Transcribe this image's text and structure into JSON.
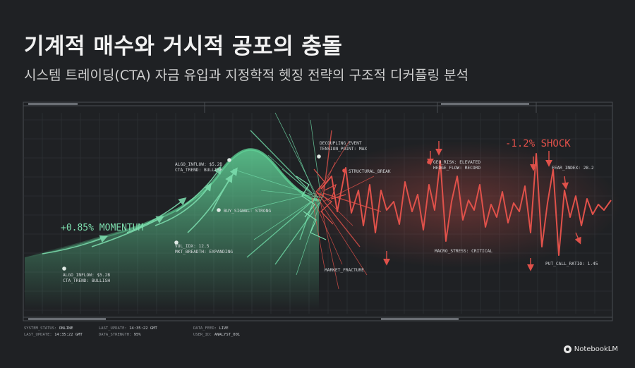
{
  "title": "기계적 매수와 거시적 공포의 충돌",
  "subtitle": "시스템 트레이딩(CTA) 자금 유입과 지정학적 헷징 전략의 구조적 디커플링 분석",
  "labels": {
    "momentum": "+0.85% MOMENTUM",
    "shock": "-1.2% SHOCK",
    "algo_low_1": "ALGO_INFLOW: $5.2B",
    "algo_low_2": "CTA_TREND: BULLISH",
    "algo_high_1": "ALGO_INFLOW: $5.2B",
    "algo_high_2": "CTA_TREND: BULLISH",
    "buy_signal": "BUY_SIGNAL: STRONG",
    "vol_idx": "VOL_IDX: 12.5",
    "mkt_breadth": "MKT_BREADTH: EXPANDING",
    "decoupling_1": "DECOUPLING_EVENT",
    "decoupling_2": "TENSION_POINT: MAX",
    "structural_break": "STRUCTURAL_BREAK",
    "market_fracture": "MARKET_FRACTURE",
    "geo_risk": "GEO_RISK: ELEVATED",
    "hedge_flow": "HEDGE_FLOW: RECORD",
    "fear_index": "FEAR_INDEX: 28.2",
    "macro_stress": "MACRO_STRESS: CRITICAL",
    "put_call": "PUT_CALL_RATIO: 1.45"
  },
  "footer": {
    "system_status_label": "SYSTEM_STATUS:",
    "system_status_value": "ONLINE",
    "last_update_label": "LAST_UPDATE:",
    "last_update_value": "14:35:22 GMT",
    "last_update2_label": "LAST_UPDATE:",
    "last_update2_value": "14:35:22 GMT",
    "data_strength_label": "DATA_STRENGTH:",
    "data_strength_value": "95%",
    "data_feed_label": "DATA_FEED:",
    "data_feed_value": "LIVE",
    "user_id_label": "USER_ID:",
    "user_id_value": "ANALYST_001"
  },
  "brand": "NotebookLM",
  "colors": {
    "background": "#1f2124",
    "bull": "#7ee0b0",
    "bear": "#e0514a",
    "grid": "#3a3d42"
  },
  "series": {
    "bull_curve": [
      [
        35,
        365
      ],
      [
        90,
        352
      ],
      [
        140,
        338
      ],
      [
        185,
        325
      ],
      [
        225,
        310
      ],
      [
        262,
        292
      ],
      [
        300,
        262
      ],
      [
        322,
        230
      ],
      [
        345,
        212
      ],
      [
        365,
        212
      ],
      [
        383,
        226
      ],
      [
        402,
        250
      ],
      [
        420,
        268
      ],
      [
        440,
        282
      ],
      [
        452,
        284
      ]
    ],
    "bear_wave": [
      [
        455,
        268
      ],
      [
        470,
        250
      ],
      [
        478,
        300
      ],
      [
        490,
        238
      ],
      [
        498,
        302
      ],
      [
        508,
        270
      ],
      [
        515,
        320
      ],
      [
        524,
        262
      ],
      [
        532,
        330
      ],
      [
        540,
        270
      ],
      [
        548,
        298
      ],
      [
        558,
        286
      ],
      [
        566,
        318
      ],
      [
        574,
        258
      ],
      [
        584,
        300
      ],
      [
        592,
        276
      ],
      [
        600,
        326
      ],
      [
        608,
        262
      ],
      [
        616,
        298
      ],
      [
        624,
        228
      ],
      [
        632,
        342
      ],
      [
        640,
        286
      ],
      [
        648,
        250
      ],
      [
        656,
        312
      ],
      [
        664,
        284
      ],
      [
        672,
        298
      ],
      [
        680,
        262
      ],
      [
        688,
        322
      ],
      [
        696,
        290
      ],
      [
        704,
        308
      ],
      [
        712,
        272
      ],
      [
        720,
        316
      ],
      [
        728,
        288
      ],
      [
        736,
        300
      ],
      [
        744,
        264
      ],
      [
        752,
        330
      ],
      [
        760,
        218
      ],
      [
        768,
        350
      ],
      [
        776,
        288
      ],
      [
        784,
        240
      ],
      [
        792,
        362
      ],
      [
        800,
        270
      ],
      [
        808,
        308
      ],
      [
        816,
        278
      ],
      [
        824,
        320
      ],
      [
        832,
        282
      ],
      [
        840,
        304
      ],
      [
        848,
        290
      ],
      [
        856,
        298
      ],
      [
        866,
        284
      ]
    ]
  }
}
